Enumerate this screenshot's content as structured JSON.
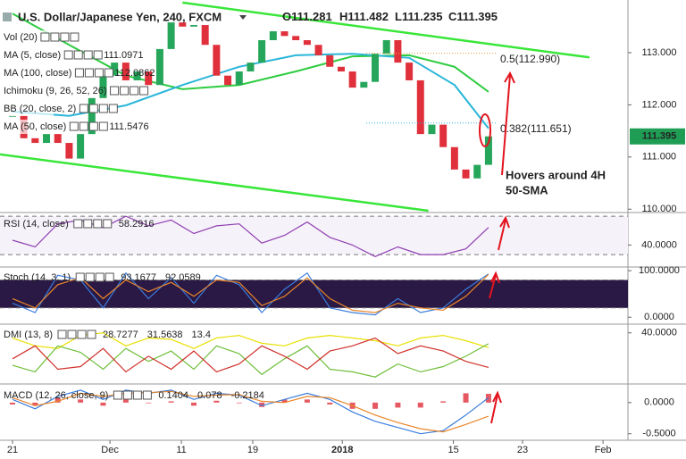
{
  "chart_data": [
    {
      "type": "candlestick",
      "title": "U.S. Dollar/Japanese Yen, 240, FXCM",
      "quote": [
        {
          "label": "O",
          "value": 111.281
        },
        {
          "label": "H",
          "value": 111.482
        },
        {
          "label": "L",
          "value": 111.235
        },
        {
          "label": "C",
          "value": 111.395
        }
      ],
      "x": [
        0,
        1,
        2,
        3,
        4,
        5,
        6,
        7,
        8,
        9,
        10,
        11,
        12,
        13,
        14,
        15,
        16,
        17,
        18,
        19,
        20,
        21,
        22,
        23,
        24,
        25,
        26,
        27,
        28,
        29,
        30,
        31,
        32,
        33,
        34,
        35,
        36,
        37,
        38,
        39,
        40,
        41,
        42
      ],
      "close": [
        111.79,
        111.36,
        111.27,
        111.44,
        111.27,
        110.97,
        111.44,
        112.13,
        112.56,
        112.81,
        112.47,
        112.64,
        112.38,
        113.07,
        113.58,
        113.5,
        113.53,
        113.15,
        112.56,
        112.38,
        112.64,
        112.81,
        113.24,
        113.41,
        113.32,
        113.24,
        113.15,
        112.95,
        112.73,
        112.64,
        112.33,
        112.44,
        112.98,
        113.24,
        112.81,
        112.47,
        111.44,
        111.62,
        111.19,
        110.76,
        110.59,
        110.85,
        111.395
      ],
      "up_color": "#26a65b",
      "down_color": "#e0303b",
      "indicators": [
        {
          "name": "Vol (20)"
        },
        {
          "name": "MA (5, close)",
          "value": 111.0971,
          "color": "#d4c400"
        },
        {
          "name": "MA (100, close)",
          "value": 112.0862,
          "color": "#2ecc40",
          "x": [
            0,
            5,
            10,
            15,
            20,
            25,
            30,
            35,
            39,
            42
          ],
          "values": [
            113.75,
            113.15,
            112.56,
            112.3,
            112.38,
            112.64,
            112.93,
            112.95,
            112.73,
            112.25
          ]
        },
        {
          "name": "Ichimoku (9, 26, 52, 26)"
        },
        {
          "name": "BB (20, close, 2)"
        },
        {
          "name": "MA (50, close)",
          "value": 111.5476,
          "color": "#29b6d9",
          "x": [
            0,
            5,
            10,
            15,
            20,
            25,
            30,
            35,
            39,
            42
          ],
          "values": [
            111.87,
            111.79,
            111.99,
            112.38,
            112.73,
            112.95,
            112.98,
            112.9,
            112.38,
            111.55
          ]
        }
      ],
      "trendlines": [
        {
          "x": [
            15,
            50.9
          ],
          "values": [
            113.96,
            112.91
          ]
        },
        {
          "x": [
            -1.1,
            36.7
          ],
          "values": [
            111.05,
            109.97
          ]
        }
      ],
      "trendline_color": "#39e639",
      "fib_levels": [
        {
          "label": "0.5(112.990)",
          "value": 112.99,
          "color": "#e0a040"
        },
        {
          "label": "0.382(111.651)",
          "value": 111.651,
          "color": "#29b6d9"
        }
      ],
      "annotation": [
        "Hovers around 4H",
        "50-SMA"
      ],
      "last_price": 111.395,
      "last_price_color": "#1f9d55",
      "xlim": [
        -1.1,
        54.3
      ],
      "xticks": [
        {
          "value": 0,
          "label": "21"
        },
        {
          "value": 8.6,
          "label": "Dec"
        },
        {
          "value": 14.9,
          "label": "11"
        },
        {
          "value": 21.2,
          "label": "19"
        },
        {
          "value": 29.1,
          "label": "2018"
        },
        {
          "value": 38.9,
          "label": "15"
        },
        {
          "value": 45,
          "label": "23"
        },
        {
          "value": 52.1,
          "label": "Feb"
        }
      ],
      "ylim": [
        109.97,
        114.01
      ],
      "yticks": [
        {
          "value": 110,
          "label": "110.000"
        },
        {
          "value": 111,
          "label": "111.000"
        },
        {
          "value": 112,
          "label": "112.000"
        },
        {
          "value": 113,
          "label": "113.000"
        }
      ]
    },
    {
      "type": "line",
      "title": "RSI (14, close)",
      "legend_values": [
        58.2916
      ],
      "x": [
        0,
        2,
        4,
        6,
        8,
        10,
        12,
        14,
        16,
        18,
        20,
        22,
        24,
        26,
        28,
        30,
        32,
        34,
        36,
        38,
        40,
        42
      ],
      "series": [
        {
          "color": "#8e3fb0",
          "values": [
            45,
            38,
            62,
            66,
            58,
            70,
            60,
            66,
            52,
            60,
            62,
            42,
            50,
            64,
            48,
            40,
            28,
            38,
            30,
            30,
            36,
            58.3
          ]
        }
      ],
      "levels": [
        30,
        70
      ],
      "level_fill": "#f6f2fa",
      "ylim": [
        18,
        72
      ],
      "yticks": [
        {
          "value": 40,
          "label": "40.0000"
        }
      ]
    },
    {
      "type": "line",
      "title": "Stoch (14, 3, 1)",
      "legend_values": [
        93.1677,
        92.0589
      ],
      "x": [
        0,
        2,
        4,
        6,
        8,
        10,
        12,
        14,
        16,
        18,
        20,
        22,
        24,
        26,
        28,
        30,
        32,
        34,
        36,
        38,
        40,
        42
      ],
      "series": [
        {
          "color": "#3b7ddd",
          "values": [
            30,
            10,
            90,
            80,
            20,
            95,
            40,
            85,
            30,
            90,
            70,
            10,
            60,
            95,
            20,
            10,
            5,
            40,
            10,
            20,
            60,
            93.2
          ]
        },
        {
          "color": "#e8862a",
          "values": [
            40,
            20,
            70,
            85,
            40,
            80,
            55,
            75,
            45,
            80,
            75,
            25,
            45,
            85,
            40,
            15,
            10,
            30,
            20,
            15,
            45,
            92
          ]
        }
      ],
      "levels": [
        20,
        80
      ],
      "level_fill": "#2a1845",
      "ylim": [
        -13,
        106
      ],
      "yticks": [
        {
          "value": 100,
          "label": "100.0000"
        },
        {
          "value": 0,
          "label": "0.0000"
        }
      ]
    },
    {
      "type": "line",
      "title": "DMI (13, 8)",
      "legend_values": [
        28.7277,
        31.5638,
        "13.4"
      ],
      "x": [
        0,
        2,
        4,
        6,
        8,
        10,
        12,
        14,
        16,
        18,
        20,
        22,
        24,
        26,
        28,
        30,
        32,
        34,
        36,
        38,
        40,
        42
      ],
      "series": [
        {
          "color": "#e8e000",
          "values": [
            36,
            30,
            28,
            38,
            40,
            30,
            36,
            35,
            28,
            36,
            38,
            32,
            30,
            36,
            38,
            36,
            34,
            30,
            36,
            38,
            34,
            28.7
          ]
        },
        {
          "color": "#6fbf3a",
          "values": [
            15,
            10,
            30,
            25,
            12,
            28,
            18,
            26,
            12,
            30,
            24,
            8,
            20,
            30,
            12,
            10,
            6,
            16,
            10,
            14,
            22,
            31.6
          ]
        },
        {
          "color": "#d0302a",
          "values": [
            20,
            30,
            12,
            14,
            28,
            10,
            22,
            12,
            26,
            10,
            16,
            30,
            22,
            12,
            26,
            30,
            36,
            24,
            30,
            26,
            18,
            13.4
          ]
        }
      ],
      "ylim": [
        2,
        46
      ],
      "yticks": [
        {
          "value": 40,
          "label": "40.0000"
        }
      ]
    },
    {
      "type": "line",
      "title": "MACD (12, 26, close, 9)",
      "legend_values": [
        0.1404,
        0.078,
        -0.2184
      ],
      "x": [
        0,
        2,
        4,
        6,
        8,
        10,
        12,
        14,
        16,
        18,
        20,
        22,
        24,
        26,
        28,
        30,
        32,
        34,
        36,
        38,
        40,
        42
      ],
      "series": [
        {
          "color": "#e0303b",
          "style": "bar",
          "values": [
            -0.03,
            -0.05,
            0.08,
            0.05,
            -0.05,
            0.05,
            -0.01,
            0.02,
            -0.05,
            0.03,
            -0.01,
            -0.07,
            0.05,
            0.05,
            -0.03,
            -0.1,
            -0.1,
            -0.08,
            -0.08,
            0.02,
            0.15,
            0.1404
          ]
        },
        {
          "color": "#3b7ddd",
          "values": [
            0.05,
            -0.1,
            0.1,
            0.2,
            0.05,
            0.2,
            0.15,
            0.2,
            0.05,
            0.15,
            0.12,
            -0.05,
            0.05,
            0.15,
            0.05,
            -0.15,
            -0.3,
            -0.4,
            -0.5,
            -0.45,
            -0.2,
            0.078
          ]
        },
        {
          "color": "#e8862a",
          "values": [
            0.08,
            -0.05,
            0.02,
            0.15,
            0.1,
            0.15,
            0.16,
            0.18,
            0.1,
            0.12,
            0.13,
            0.02,
            0,
            0.1,
            0.08,
            -0.05,
            -0.2,
            -0.32,
            -0.42,
            -0.47,
            -0.35,
            -0.2184
          ]
        }
      ],
      "ylim": [
        -0.59,
        0.27
      ],
      "yticks": [
        {
          "value": 0,
          "label": "0.0000"
        },
        {
          "value": -0.5,
          "label": "-0.5000"
        }
      ]
    }
  ]
}
